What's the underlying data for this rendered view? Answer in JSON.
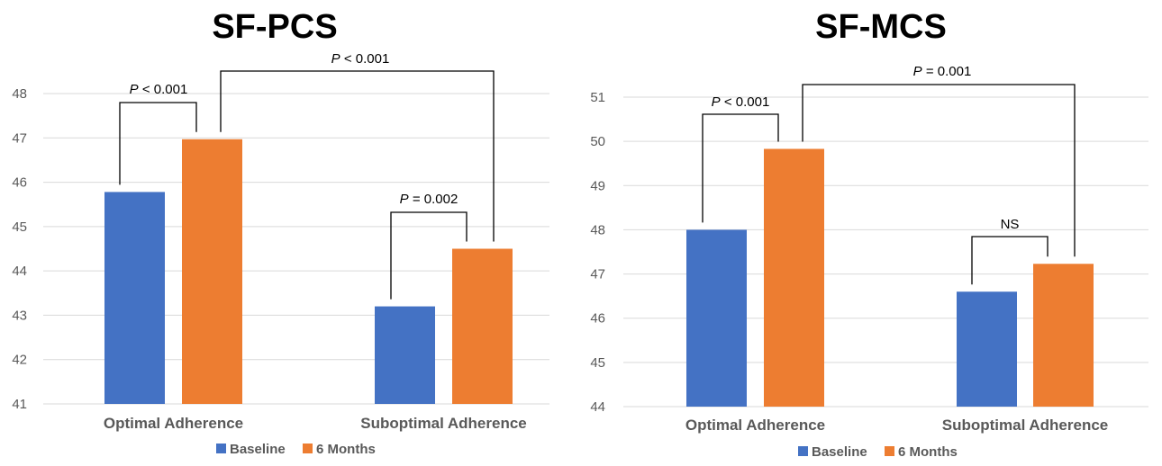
{
  "colors": {
    "baseline": "#4472c4",
    "six_months": "#ed7d31",
    "grid": "#d9d9d9"
  },
  "chart_data": [
    {
      "type": "bar",
      "title": "SF-PCS",
      "categories": [
        "Optimal Adherence",
        "Suboptimal Adherence"
      ],
      "series": [
        {
          "name": "Baseline",
          "values": [
            45.78,
            43.2
          ]
        },
        {
          "name": "6 Months",
          "values": [
            46.97,
            44.5
          ]
        }
      ],
      "ylim": [
        41,
        48
      ],
      "yticks": [
        "41",
        "42",
        "43",
        "44",
        "45",
        "46",
        "47",
        "48"
      ],
      "grid": true,
      "legend": "bottom",
      "annotations": [
        {
          "prefix": "P",
          "text": " < 0.001",
          "compares": "Optimal Adherence: Baseline vs 6 Months"
        },
        {
          "prefix": "P",
          "text": " < 0.001",
          "compares": "6 Months: Optimal vs Suboptimal Adherence"
        },
        {
          "prefix": "P",
          "text": " = 0.002",
          "compares": "Suboptimal Adherence: Baseline vs 6 Months"
        }
      ]
    },
    {
      "type": "bar",
      "title": "SF-MCS",
      "categories": [
        "Optimal Adherence",
        "Suboptimal Adherence"
      ],
      "series": [
        {
          "name": "Baseline",
          "values": [
            48.0,
            46.6
          ]
        },
        {
          "name": "6 Months",
          "values": [
            49.83,
            47.23
          ]
        }
      ],
      "ylim": [
        44,
        51
      ],
      "yticks": [
        "44",
        "45",
        "46",
        "47",
        "48",
        "49",
        "50",
        "51"
      ],
      "grid": true,
      "legend": "bottom",
      "annotations": [
        {
          "prefix": "P",
          "text": " < 0.001",
          "compares": "Optimal Adherence: Baseline vs 6 Months"
        },
        {
          "prefix": "P",
          "text": " = 0.001",
          "compares": "6 Months: Optimal vs Suboptimal Adherence"
        },
        {
          "prefix": "",
          "text": "NS",
          "compares": "Suboptimal Adherence: Baseline vs 6 Months"
        }
      ]
    }
  ]
}
